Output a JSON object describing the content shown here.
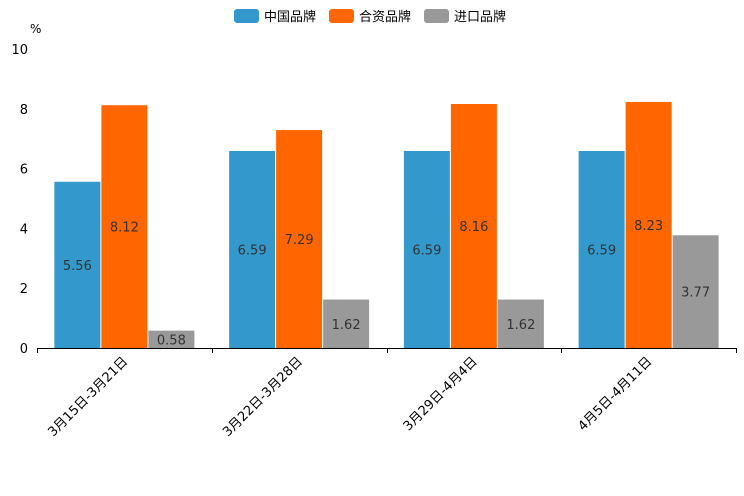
{
  "chart_data": {
    "type": "bar",
    "title": "",
    "xlabel": "",
    "ylabel": "%",
    "ylim": [
      0,
      10
    ],
    "yticks": [
      0,
      2,
      4,
      6,
      8,
      10
    ],
    "grid": false,
    "legend_position": "top-center",
    "categories": [
      "3月15日-3月21日",
      "3月22日-3月28日",
      "3月29日-4月4日",
      "4月5日-4月11日"
    ],
    "series": [
      {
        "name": "中国品牌",
        "color": "#3399CC",
        "values": [
          5.56,
          6.59,
          6.59,
          6.59
        ],
        "labels": [
          "5.56",
          "6.59",
          "6.59",
          "6.59"
        ]
      },
      {
        "name": "合资品牌",
        "color": "#FF6600",
        "values": [
          8.12,
          7.29,
          8.16,
          8.23
        ],
        "labels": [
          "8.12",
          "7.29",
          "8.16",
          "8.23"
        ]
      },
      {
        "name": "进口品牌",
        "color": "#999999",
        "values": [
          0.58,
          1.62,
          1.62,
          3.77
        ],
        "labels": [
          "0.58",
          "1.62",
          "1.62",
          "3.77"
        ]
      }
    ]
  }
}
